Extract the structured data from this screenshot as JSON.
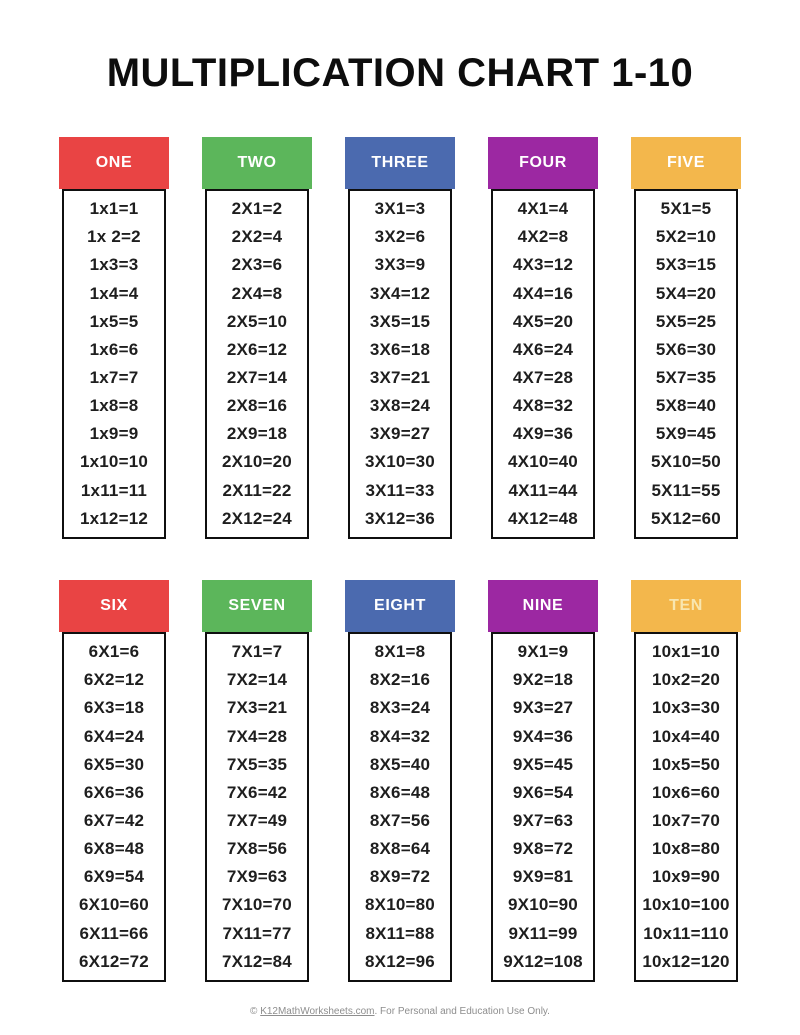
{
  "page": {
    "title": "MULTIPLICATION CHART 1-10"
  },
  "colors": {
    "red": "#e94444",
    "green": "#5cb65b",
    "blue": "#4b6aaf",
    "purple": "#9c28a2",
    "amber": "#f3b74c",
    "header_text": "#ffffff",
    "ten_header_text": "#f8e6af",
    "fact_text": "#1e1e1e",
    "box_border": "#0f0f0f"
  },
  "columns": [
    {
      "label": "ONE",
      "color": "#e94444",
      "label_color": "#ffffff",
      "facts": [
        "1x1=1",
        "1x 2=2",
        "1x3=3",
        "1x4=4",
        "1x5=5",
        "1x6=6",
        "1x7=7",
        "1x8=8",
        "1x9=9",
        "1x10=10",
        "1x11=11",
        "1x12=12"
      ]
    },
    {
      "label": "TWO",
      "color": "#5cb65b",
      "label_color": "#ffffff",
      "facts": [
        "2X1=2",
        "2X2=4",
        "2X3=6",
        "2X4=8",
        "2X5=10",
        "2X6=12",
        "2X7=14",
        "2X8=16",
        "2X9=18",
        "2X10=20",
        "2X11=22",
        "2X12=24"
      ]
    },
    {
      "label": "THREE",
      "color": "#4b6aaf",
      "label_color": "#ffffff",
      "facts": [
        "3X1=3",
        "3X2=6",
        "3X3=9",
        "3X4=12",
        "3X5=15",
        "3X6=18",
        "3X7=21",
        "3X8=24",
        "3X9=27",
        "3X10=30",
        "3X11=33",
        "3X12=36"
      ]
    },
    {
      "label": "FOUR",
      "color": "#9c28a2",
      "label_color": "#ffffff",
      "facts": [
        "4X1=4",
        "4X2=8",
        "4X3=12",
        "4X4=16",
        "4X5=20",
        "4X6=24",
        "4X7=28",
        "4X8=32",
        "4X9=36",
        "4X10=40",
        "4X11=44",
        "4X12=48"
      ]
    },
    {
      "label": "FIVE",
      "color": "#f3b74c",
      "label_color": "#ffffff",
      "facts": [
        "5X1=5",
        "5X2=10",
        "5X3=15",
        "5X4=20",
        "5X5=25",
        "5X6=30",
        "5X7=35",
        "5X8=40",
        "5X9=45",
        "5X10=50",
        "5X11=55",
        "5X12=60"
      ]
    },
    {
      "label": "SIX",
      "color": "#e94444",
      "label_color": "#ffffff",
      "facts": [
        "6X1=6",
        "6X2=12",
        "6X3=18",
        "6X4=24",
        "6X5=30",
        "6X6=36",
        "6X7=42",
        "6X8=48",
        "6X9=54",
        "6X10=60",
        "6X11=66",
        "6X12=72"
      ]
    },
    {
      "label": "SEVEN",
      "color": "#5cb65b",
      "label_color": "#ffffff",
      "facts": [
        "7X1=7",
        "7X2=14",
        "7X3=21",
        "7X4=28",
        "7X5=35",
        "7X6=42",
        "7X7=49",
        "7X8=56",
        "7X9=63",
        "7X10=70",
        "7X11=77",
        "7X12=84"
      ]
    },
    {
      "label": "EIGHT",
      "color": "#4b6aaf",
      "label_color": "#ffffff",
      "facts": [
        "8X1=8",
        "8X2=16",
        "8X3=24",
        "8X4=32",
        "8X5=40",
        "8X6=48",
        "8X7=56",
        "8X8=64",
        "8X9=72",
        "8X10=80",
        "8X11=88",
        "8X12=96"
      ]
    },
    {
      "label": "NINE",
      "color": "#9c28a2",
      "label_color": "#ffffff",
      "facts": [
        "9X1=9",
        "9X2=18",
        "9X3=27",
        "9X4=36",
        "9X5=45",
        "9X6=54",
        "9X7=63",
        "9X8=72",
        "9X9=81",
        "9X10=90",
        "9X11=99",
        "9X12=108"
      ]
    },
    {
      "label": "TEN",
      "color": "#f3b74c",
      "label_color": "#f8e6af",
      "facts": [
        "10x1=10",
        "10x2=20",
        "10x3=30",
        "10x4=40",
        "10x5=50",
        "10x6=60",
        "10x7=70",
        "10x8=80",
        "10x9=90",
        "10x10=100",
        "10x11=110",
        "10x12=120"
      ]
    }
  ],
  "footer": {
    "prefix": "© ",
    "link_text": "K12MathWorksheets.com",
    "suffix": ". For Personal and Education Use Only."
  }
}
